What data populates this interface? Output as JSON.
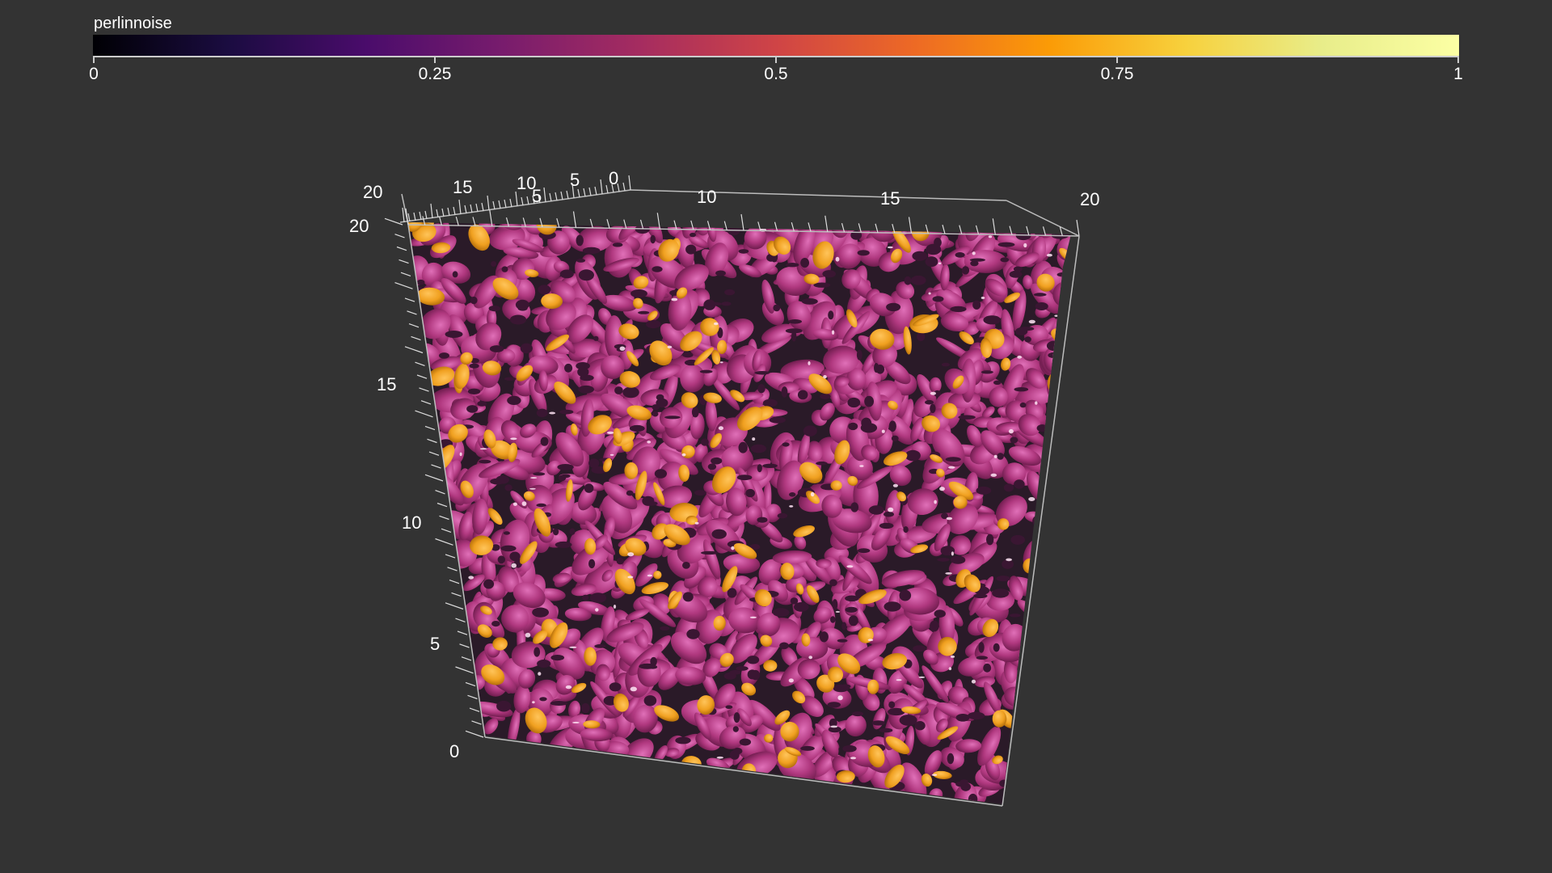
{
  "colorbar": {
    "title": "perlinnoise",
    "range": [
      0,
      1
    ],
    "colormap": "inferno",
    "ticks": [
      "0",
      "0.25",
      "0.5",
      "0.75",
      "1"
    ]
  },
  "scene": {
    "surface_colors": {
      "primary": "#b0387f",
      "secondary": "#f0a020",
      "background": "#333333"
    },
    "axes": {
      "vertical": {
        "ticks": [
          "0",
          "5",
          "10",
          "15",
          "20"
        ]
      },
      "top_front": {
        "ticks": [
          "5",
          "10",
          "15",
          "20"
        ]
      },
      "top_back": {
        "ticks": [
          "20",
          "15",
          "10",
          "5",
          "0"
        ]
      },
      "corner_label": "20"
    }
  }
}
